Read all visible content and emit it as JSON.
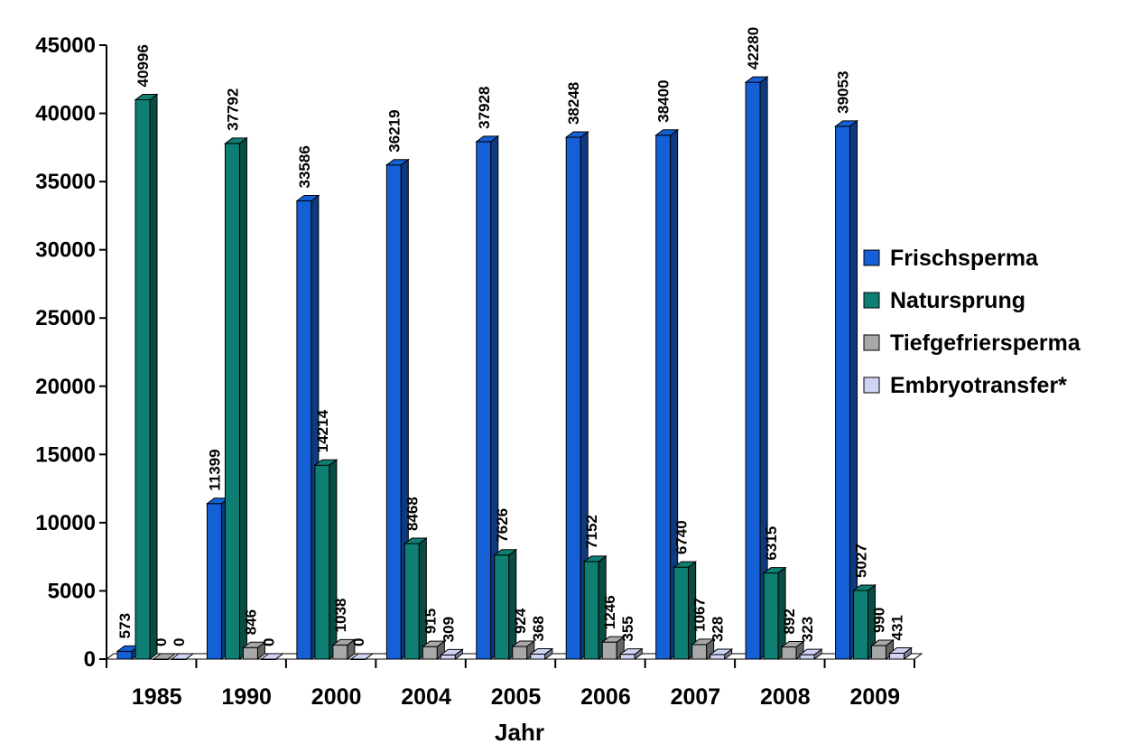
{
  "chart_data": {
    "type": "bar",
    "title": "",
    "xlabel": "Jahr",
    "ylabel": "",
    "ylim": [
      0,
      45000
    ],
    "yticks": [
      0,
      5000,
      10000,
      15000,
      20000,
      25000,
      30000,
      35000,
      40000,
      45000
    ],
    "categories": [
      "1985",
      "1990",
      "2000",
      "2004",
      "2005",
      "2006",
      "2007",
      "2008",
      "2009"
    ],
    "series": [
      {
        "name": "Frischsperma",
        "color": "#1560D6",
        "values": [
          573,
          11399,
          33586,
          36219,
          37928,
          38248,
          38400,
          42280,
          39053
        ]
      },
      {
        "name": "Natursprung",
        "color": "#0E7F72",
        "values": [
          40996,
          37792,
          14214,
          8468,
          7626,
          7152,
          6740,
          6315,
          5027
        ]
      },
      {
        "name": "Tiefgefriersperma",
        "color": "#A8A8A8",
        "values": [
          0,
          846,
          1038,
          915,
          924,
          1246,
          1067,
          892,
          990
        ]
      },
      {
        "name": "Embryotransfer*",
        "color": "#CFD4F5",
        "values": [
          0,
          0,
          0,
          309,
          368,
          355,
          328,
          323,
          431
        ]
      }
    ],
    "legend_position": "right",
    "grid": false,
    "style": "3d-columns"
  }
}
